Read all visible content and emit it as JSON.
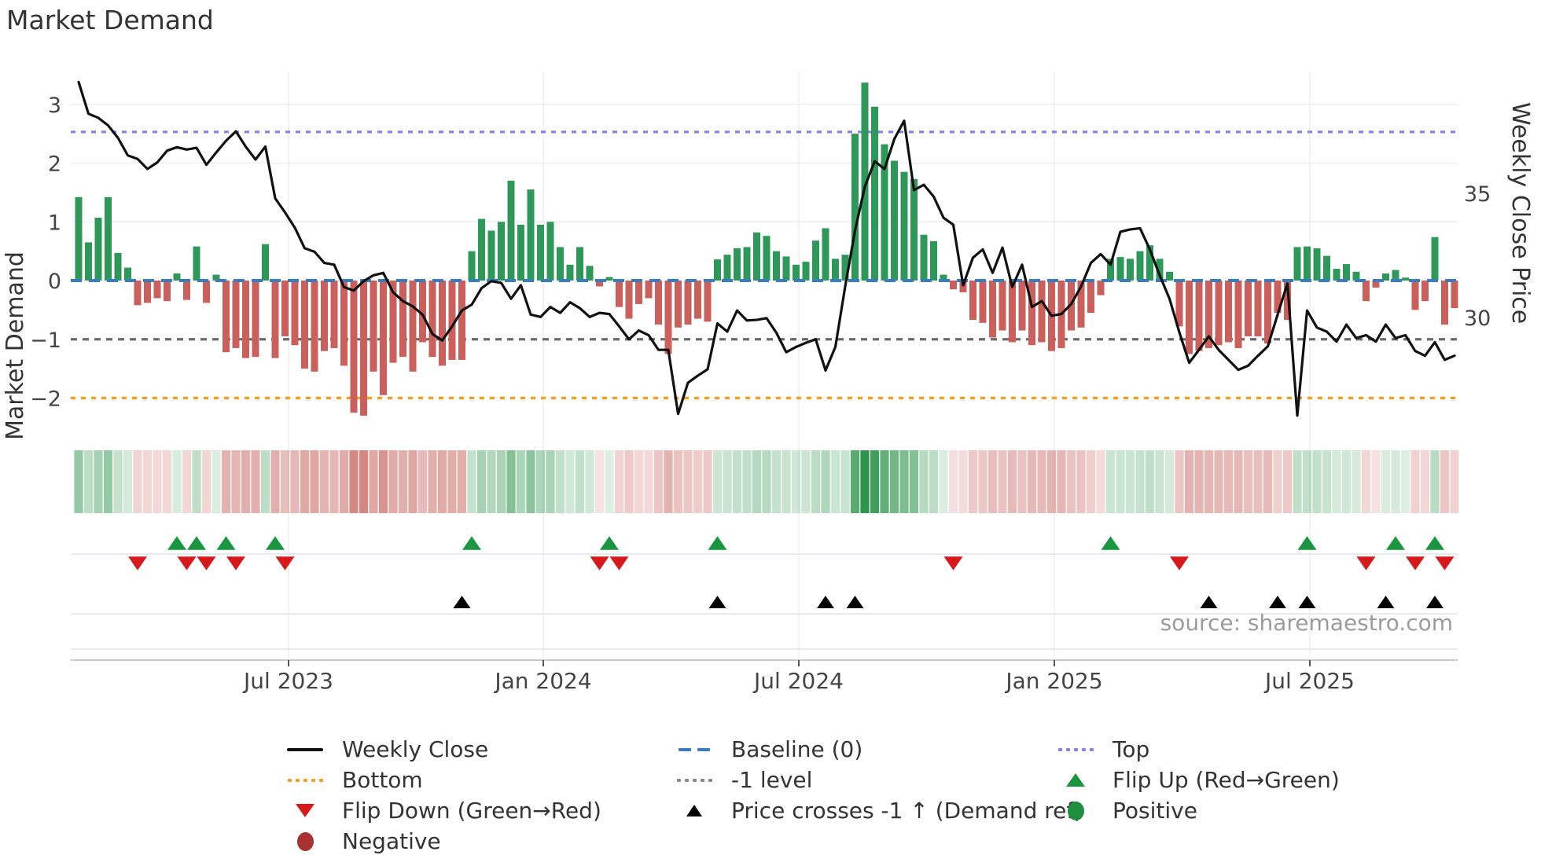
{
  "title": "Market Demand",
  "source_text": "source: sharemaestro.com",
  "axes": {
    "left_label": "Market Demand",
    "right_label": "Weekly Close Price",
    "left_ticks": [
      {
        "label": "3",
        "value": 3
      },
      {
        "label": "2",
        "value": 2
      },
      {
        "label": "1",
        "value": 1
      },
      {
        "label": "0",
        "value": 0
      },
      {
        "label": "−1",
        "value": -1
      },
      {
        "label": "−2",
        "value": -2
      }
    ],
    "right_ticks": [
      {
        "label": "35",
        "value_on_demand_scale": 1.485
      },
      {
        "label": "30",
        "value_on_demand_scale": -0.63
      }
    ]
  },
  "colors": {
    "bar_positive": "#2e9858",
    "bar_negative": "#cb5f5c",
    "price_line": "#111111",
    "baseline": "#3a7dbf",
    "top_line": "#8585e0",
    "bottom_line": "#f5a022",
    "minus_one_line": "#6b6b6b",
    "flip_up": "#1a9641",
    "flip_down": "#d7191c",
    "price_cross": "#000000",
    "grid": "#ededf2",
    "heat_green": "26,140,60",
    "heat_red": "193,77,70"
  },
  "chart_data": {
    "type": "combo",
    "x_description": "weekly, Feb 2023 - Oct 2025",
    "x_ticks": [
      {
        "label": "Jul 2023",
        "week": 21.36
      },
      {
        "label": "Jan 2024",
        "week": 47.28
      },
      {
        "label": "Jul 2024",
        "week": 73.28
      },
      {
        "label": "Jan 2025",
        "week": 99.28
      },
      {
        "label": "Jul 2025",
        "week": 125.28
      }
    ],
    "ylim_left": [
      -2.55,
      3.55
    ],
    "reference_lines": {
      "baseline": 0,
      "top": 2.53,
      "minus_one": -1,
      "bottom": -2
    },
    "series": [
      {
        "name": "Market Demand",
        "type": "bar",
        "axis": "left",
        "values": [
          1.42,
          0.65,
          1.07,
          1.42,
          0.47,
          0.22,
          -0.42,
          -0.38,
          -0.3,
          -0.35,
          0.12,
          -0.33,
          0.58,
          -0.38,
          0.1,
          -1.22,
          -1.15,
          -1.32,
          -1.3,
          0.62,
          -1.32,
          -0.95,
          -1.1,
          -1.5,
          -1.55,
          -1.2,
          -1.15,
          -1.45,
          -2.25,
          -2.3,
          -1.55,
          -1.95,
          -1.4,
          -1.3,
          -1.55,
          -1.05,
          -1.3,
          -1.45,
          -1.35,
          -1.35,
          0.5,
          1.05,
          0.85,
          1.0,
          1.7,
          0.95,
          1.55,
          0.95,
          1.0,
          0.57,
          0.27,
          0.57,
          0.25,
          -0.1,
          0.06,
          -0.45,
          -0.65,
          -0.4,
          -0.3,
          -0.75,
          -1.25,
          -0.8,
          -0.75,
          -0.65,
          -0.7,
          0.36,
          0.44,
          0.55,
          0.57,
          0.82,
          0.76,
          0.5,
          0.41,
          0.27,
          0.32,
          0.68,
          0.89,
          0.37,
          0.44,
          2.5,
          3.37,
          2.96,
          2.32,
          2.04,
          1.85,
          1.73,
          0.78,
          0.67,
          0.1,
          -0.15,
          -0.2,
          -0.67,
          -0.72,
          -0.97,
          -0.85,
          -1.05,
          -0.85,
          -1.1,
          -1.05,
          -1.2,
          -1.15,
          -0.85,
          -0.8,
          -0.55,
          -0.25,
          0.37,
          0.4,
          0.37,
          0.5,
          0.6,
          0.37,
          0.15,
          -0.78,
          -1.25,
          -1.2,
          -1.15,
          -1.1,
          -1.05,
          -1.15,
          -0.95,
          -0.95,
          -1.07,
          -0.55,
          -0.67,
          0.57,
          0.58,
          0.55,
          0.42,
          0.2,
          0.28,
          0.15,
          -0.35,
          -0.12,
          0.12,
          0.18,
          0.05,
          -0.5,
          -0.35,
          0.74,
          -0.75,
          -0.47
        ]
      },
      {
        "name": "Weekly Close",
        "type": "line",
        "axis": "right",
        "values_on_demand_scale": [
          3.38,
          2.84,
          2.77,
          2.64,
          2.43,
          2.13,
          2.07,
          1.9,
          2.01,
          2.21,
          2.27,
          2.23,
          2.26,
          1.97,
          2.18,
          2.38,
          2.54,
          2.28,
          2.06,
          2.28,
          1.4,
          1.16,
          0.9,
          0.55,
          0.49,
          0.3,
          0.27,
          -0.11,
          -0.17,
          -0.01,
          0.09,
          0.13,
          -0.2,
          -0.35,
          -0.44,
          -0.58,
          -0.91,
          -1.02,
          -0.78,
          -0.51,
          -0.41,
          -0.13,
          -0.01,
          -0.04,
          -0.31,
          -0.08,
          -0.58,
          -0.62,
          -0.45,
          -0.55,
          -0.37,
          -0.47,
          -0.62,
          -0.55,
          -0.57,
          -0.78,
          -1.0,
          -0.85,
          -0.93,
          -1.18,
          -1.18,
          -2.27,
          -1.74,
          -1.62,
          -1.51,
          -0.73,
          -0.87,
          -0.51,
          -0.68,
          -0.67,
          -0.64,
          -0.89,
          -1.22,
          -1.13,
          -1.06,
          -1.0,
          -1.53,
          -1.13,
          -0.1,
          0.85,
          1.6,
          2.03,
          1.9,
          2.41,
          2.72,
          1.54,
          1.63,
          1.43,
          1.07,
          0.95,
          -0.08,
          0.39,
          0.53,
          0.13,
          0.56,
          -0.11,
          0.27,
          -0.45,
          -0.35,
          -0.6,
          -0.57,
          -0.4,
          -0.1,
          0.3,
          0.45,
          0.27,
          0.83,
          0.87,
          0.89,
          0.53,
          0.09,
          -0.31,
          -0.88,
          -1.4,
          -1.18,
          -0.95,
          -1.18,
          -1.35,
          -1.52,
          -1.45,
          -1.28,
          -1.12,
          -0.58,
          -0.05,
          -2.3,
          -0.51,
          -0.8,
          -0.87,
          -1.04,
          -0.75,
          -0.98,
          -0.93,
          -1.04,
          -0.75,
          -0.98,
          -0.93,
          -1.2,
          -1.28,
          -1.05,
          -1.35,
          -1.28
        ]
      }
    ],
    "markers": {
      "flip_up_weeks": [
        10,
        12,
        15,
        20,
        40,
        54,
        65,
        105,
        125,
        134,
        138
      ],
      "flip_down_weeks": [
        6,
        11,
        13,
        16,
        21,
        53,
        55,
        89,
        112,
        131,
        136,
        139
      ],
      "price_cross_weeks": [
        39,
        65,
        76,
        79,
        115,
        122,
        125,
        133,
        138
      ]
    },
    "heat_strip": "weekly cells colored by Market Demand sign and magnitude (green positive, red negative)"
  },
  "legend": {
    "columns": [
      [
        {
          "label": "Weekly Close",
          "swatch": "black-line"
        },
        {
          "label": "Bottom",
          "swatch": "orange-dotted"
        },
        {
          "label": "Flip Down (Green→Red)",
          "swatch": "red-triangle-down"
        },
        {
          "label": "Negative",
          "swatch": "darkred-circle"
        }
      ],
      [
        {
          "label": "Baseline (0)",
          "swatch": "blue-dashed"
        },
        {
          "label": "-1 level",
          "swatch": "gray-dotted"
        },
        {
          "label": "Price crosses -1 ↑ (Demand ref)",
          "swatch": "black-triangle-up"
        }
      ],
      [
        {
          "label": "Top",
          "swatch": "purple-dotted"
        },
        {
          "label": "Flip Up (Red→Green)",
          "swatch": "green-triangle-up"
        },
        {
          "label": "Positive",
          "swatch": "green-circle"
        }
      ]
    ]
  }
}
